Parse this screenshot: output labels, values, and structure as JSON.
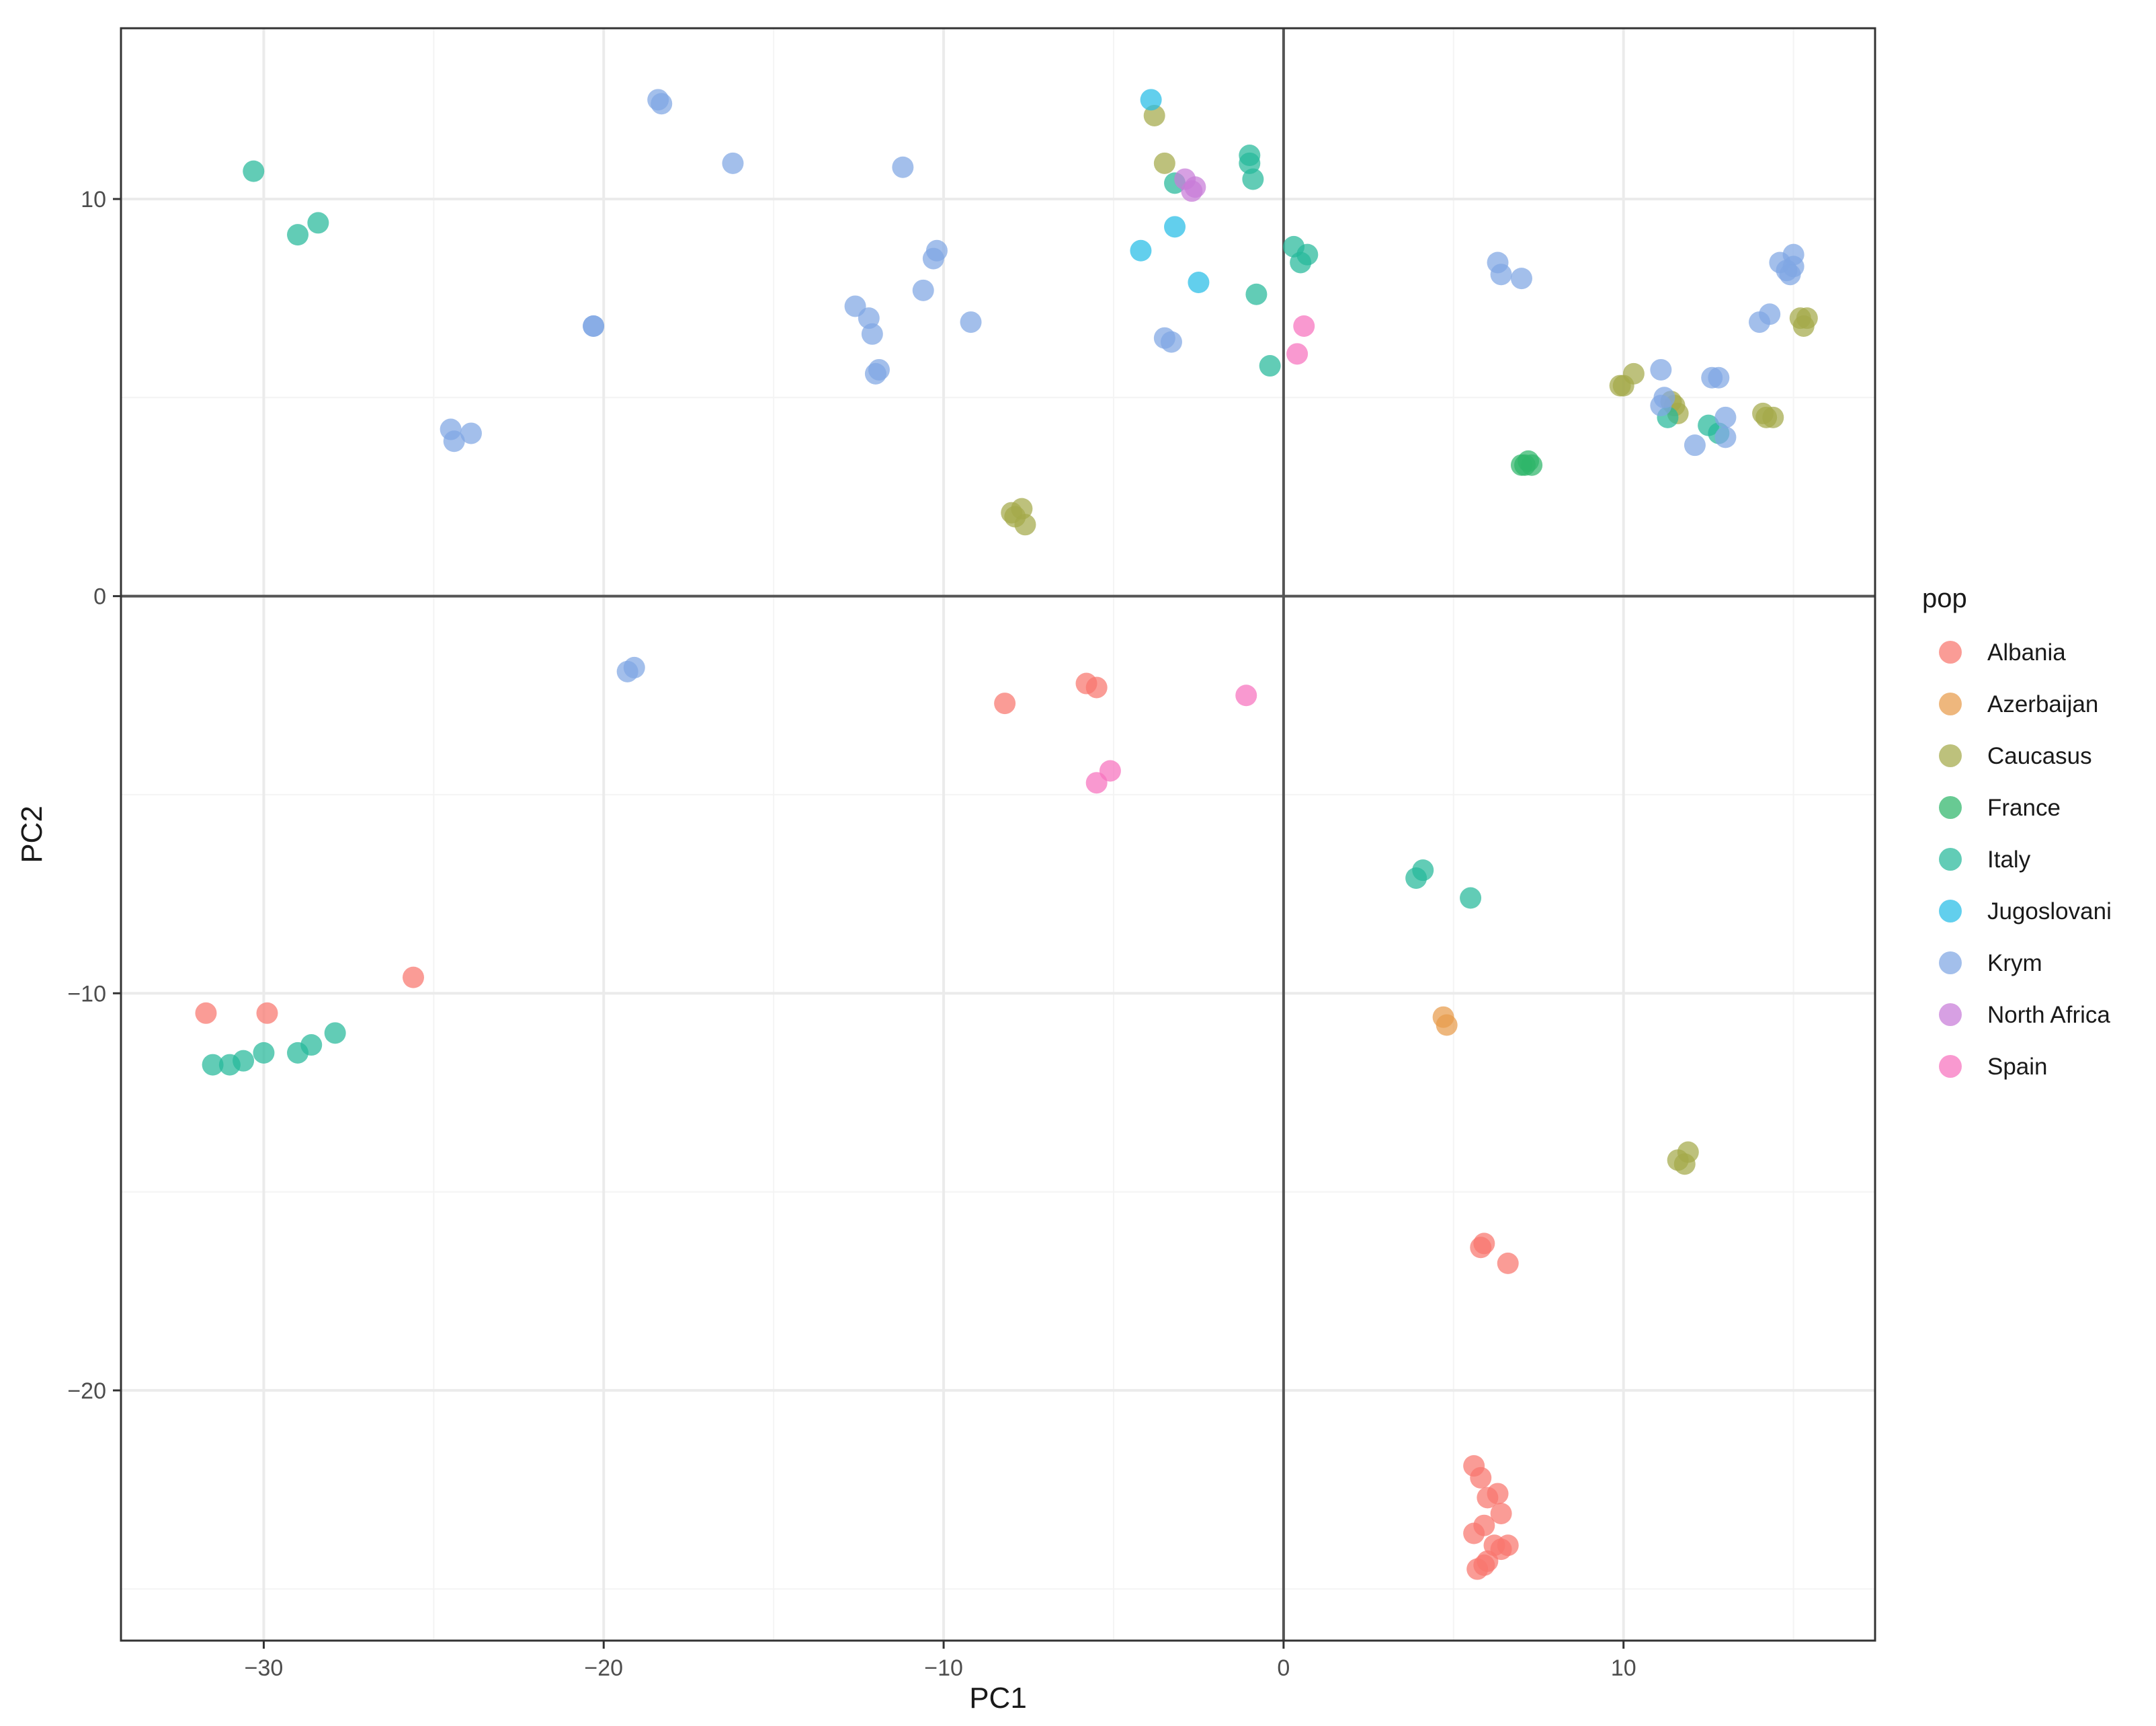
{
  "chart_data": {
    "type": "scatter",
    "title": "",
    "xlabel": "PC1",
    "ylabel": "PC2",
    "xlim": [
      -34.2,
      17.4
    ],
    "ylim": [
      -26.3,
      14.3
    ],
    "x_ticks": [
      -30,
      -20,
      -10,
      0,
      10
    ],
    "x_tick_labels": [
      "−30",
      "−20",
      "−10",
      "0",
      "10"
    ],
    "y_ticks": [
      -20,
      -10,
      0,
      10
    ],
    "y_tick_labels": [
      "−20",
      "−10",
      "0",
      "10"
    ],
    "grid": true,
    "reference_lines": {
      "x": 0,
      "y": 0
    },
    "legend": {
      "title": "pop",
      "position": "right"
    },
    "series": [
      {
        "name": "Albania",
        "color": "#F8766D",
        "points": [
          [
            -31.7,
            -10.5
          ],
          [
            -29.9,
            -10.5
          ],
          [
            -25.6,
            -9.6
          ],
          [
            -8.2,
            -2.7
          ],
          [
            -5.8,
            -2.2
          ],
          [
            -5.5,
            -2.3
          ],
          [
            5.8,
            -16.4
          ],
          [
            5.9,
            -16.3
          ],
          [
            6.6,
            -16.8
          ],
          [
            5.6,
            -21.9
          ],
          [
            5.8,
            -22.2
          ],
          [
            6.0,
            -22.7
          ],
          [
            6.3,
            -22.6
          ],
          [
            6.4,
            -23.1
          ],
          [
            5.6,
            -23.6
          ],
          [
            5.9,
            -23.4
          ],
          [
            6.2,
            -23.9
          ],
          [
            6.4,
            -24.0
          ],
          [
            6.6,
            -23.9
          ],
          [
            5.7,
            -24.5
          ],
          [
            5.9,
            -24.4
          ],
          [
            6.0,
            -24.3
          ]
        ]
      },
      {
        "name": "Azerbaijan",
        "color": "#E89B4B",
        "points": [
          [
            4.7,
            -10.6
          ],
          [
            4.8,
            -10.8
          ]
        ]
      },
      {
        "name": "Caucasus",
        "color": "#A3A94A",
        "points": [
          [
            -3.8,
            12.1
          ],
          [
            -3.5,
            10.9
          ],
          [
            -8.0,
            2.1
          ],
          [
            -7.9,
            2.0
          ],
          [
            -7.7,
            2.2
          ],
          [
            -7.6,
            1.8
          ],
          [
            9.9,
            5.3
          ],
          [
            10.0,
            5.3
          ],
          [
            10.3,
            5.6
          ],
          [
            11.4,
            4.9
          ],
          [
            11.5,
            4.8
          ],
          [
            11.6,
            4.6
          ],
          [
            14.1,
            4.6
          ],
          [
            14.2,
            4.5
          ],
          [
            14.4,
            4.5
          ],
          [
            15.2,
            7.0
          ],
          [
            15.3,
            6.8
          ],
          [
            15.4,
            7.0
          ],
          [
            11.6,
            -14.2
          ],
          [
            11.8,
            -14.3
          ],
          [
            11.9,
            -14.0
          ]
        ]
      },
      {
        "name": "France",
        "color": "#2EB56A",
        "points": [
          [
            7.0,
            3.3
          ],
          [
            7.2,
            3.4
          ],
          [
            7.3,
            3.3
          ],
          [
            7.1,
            3.3
          ]
        ]
      },
      {
        "name": "Italy",
        "color": "#26B99A",
        "points": [
          [
            -30.3,
            10.7
          ],
          [
            -29.0,
            9.1
          ],
          [
            -28.4,
            9.4
          ],
          [
            -31.5,
            -11.8
          ],
          [
            -31.0,
            -11.8
          ],
          [
            -30.6,
            -11.7
          ],
          [
            -30.0,
            -11.5
          ],
          [
            -29.0,
            -11.5
          ],
          [
            -28.6,
            -11.3
          ],
          [
            -27.9,
            -11.0
          ],
          [
            -1.0,
            11.1
          ],
          [
            -1.0,
            10.9
          ],
          [
            -0.9,
            10.5
          ],
          [
            0.3,
            8.8
          ],
          [
            0.5,
            8.4
          ],
          [
            0.7,
            8.6
          ],
          [
            -0.8,
            7.6
          ],
          [
            -0.4,
            5.8
          ],
          [
            -3.2,
            10.4
          ],
          [
            3.9,
            -7.1
          ],
          [
            4.1,
            -6.9
          ],
          [
            5.5,
            -7.6
          ],
          [
            11.3,
            4.5
          ],
          [
            12.5,
            4.3
          ],
          [
            12.8,
            4.1
          ]
        ]
      },
      {
        "name": "Jugoslovani",
        "color": "#26BDE6",
        "points": [
          [
            -3.9,
            12.5
          ],
          [
            -4.2,
            8.7
          ],
          [
            -3.2,
            9.3
          ],
          [
            -2.5,
            7.9
          ]
        ]
      },
      {
        "name": "Krym",
        "color": "#7FA6E3",
        "points": [
          [
            -18.4,
            12.5
          ],
          [
            -18.3,
            12.4
          ],
          [
            -16.2,
            10.9
          ],
          [
            -11.2,
            10.8
          ],
          [
            -12.6,
            7.3
          ],
          [
            -12.2,
            7.0
          ],
          [
            -12.1,
            6.6
          ],
          [
            -12.0,
            5.6
          ],
          [
            -11.9,
            5.7
          ],
          [
            -10.6,
            7.7
          ],
          [
            -10.3,
            8.5
          ],
          [
            -10.2,
            8.7
          ],
          [
            -9.2,
            6.9
          ],
          [
            -20.3,
            6.8
          ],
          [
            -20.3,
            6.8
          ],
          [
            -24.5,
            4.2
          ],
          [
            -24.4,
            3.9
          ],
          [
            -23.9,
            4.1
          ],
          [
            -19.3,
            -1.9
          ],
          [
            -19.1,
            -1.8
          ],
          [
            -3.5,
            6.5
          ],
          [
            -3.3,
            6.4
          ],
          [
            6.3,
            8.4
          ],
          [
            6.4,
            8.1
          ],
          [
            7.0,
            8.0
          ],
          [
            11.1,
            5.7
          ],
          [
            11.2,
            5.0
          ],
          [
            11.1,
            4.8
          ],
          [
            12.1,
            3.8
          ],
          [
            12.6,
            5.5
          ],
          [
            12.8,
            5.5
          ],
          [
            13.0,
            4.5
          ],
          [
            13.0,
            4.0
          ],
          [
            14.0,
            6.9
          ],
          [
            14.3,
            7.1
          ],
          [
            14.6,
            8.4
          ],
          [
            14.8,
            8.2
          ],
          [
            14.9,
            8.1
          ],
          [
            15.0,
            8.6
          ],
          [
            15.0,
            8.3
          ]
        ]
      },
      {
        "name": "North Africa",
        "color": "#C77CD8",
        "points": [
          [
            -2.9,
            10.5
          ],
          [
            -2.7,
            10.2
          ],
          [
            -2.6,
            10.3
          ]
        ]
      },
      {
        "name": "Spain",
        "color": "#F772BE",
        "points": [
          [
            0.4,
            6.1
          ],
          [
            0.6,
            6.8
          ],
          [
            -1.1,
            -2.5
          ],
          [
            -5.1,
            -4.4
          ],
          [
            -5.5,
            -4.7
          ]
        ]
      }
    ]
  }
}
